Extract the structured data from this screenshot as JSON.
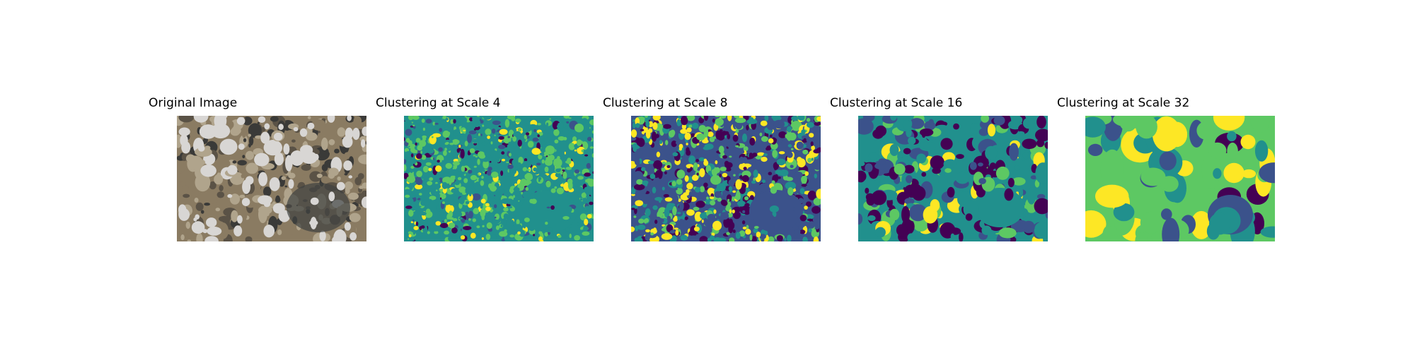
{
  "panels": [
    {
      "title": "Original Image",
      "kind": "photo"
    },
    {
      "title": "Clustering at Scale 4",
      "kind": "cluster",
      "scale": 4
    },
    {
      "title": "Clustering at Scale 8",
      "kind": "cluster",
      "scale": 8
    },
    {
      "title": "Clustering at Scale 16",
      "kind": "cluster",
      "scale": 16
    },
    {
      "title": "Clustering at Scale 32",
      "kind": "cluster",
      "scale": 32
    }
  ],
  "colormap": [
    "#440154",
    "#3b528b",
    "#21908d",
    "#5dc863",
    "#fde725"
  ],
  "photo_palette": [
    "#5a5246",
    "#8a7b62",
    "#b0a48c",
    "#d8d6d4",
    "#3a3a38"
  ]
}
